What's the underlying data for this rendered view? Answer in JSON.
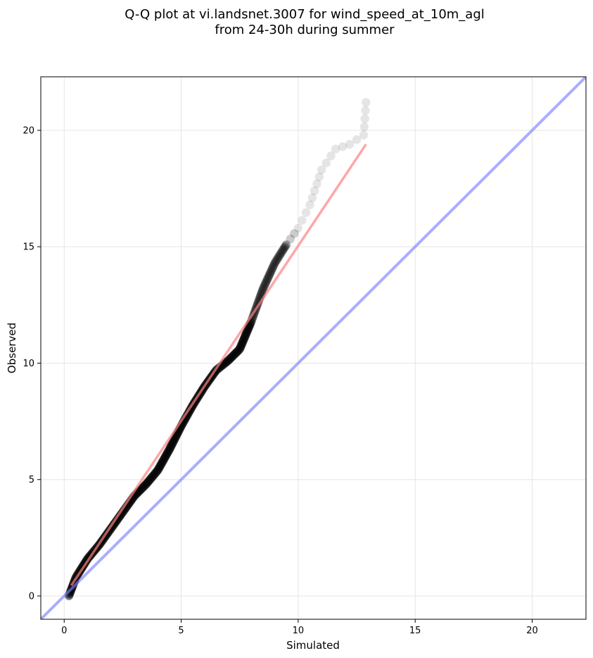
{
  "chart_data": {
    "type": "scatter",
    "title": "Q-Q plot at vi.landsnet.3007 for wind_speed_at_10m_agl",
    "subtitle": "from 24-30h during summer",
    "xlabel": "Simulated",
    "ylabel": "Observed",
    "xlim": [
      -1.0,
      22.3
    ],
    "ylim": [
      -1.0,
      22.3
    ],
    "xticks": [
      "0",
      "5",
      "10",
      "15",
      "20"
    ],
    "yticks": [
      "0",
      "5",
      "10",
      "15",
      "20"
    ],
    "grid": true,
    "colors": {
      "points": "#000000",
      "fit_line": "#ff8080",
      "identity_line": "#8080ff",
      "grid": "#e5e5e5"
    },
    "quantile_anchors": {
      "x": [
        0.2,
        0.5,
        1.0,
        1.5,
        2.0,
        2.5,
        3.0,
        3.5,
        4.0,
        4.5,
        5.0,
        5.5,
        6.0,
        6.5,
        7.0,
        7.5,
        8.0,
        8.5,
        9.0,
        9.5,
        10.0,
        10.5,
        11.0,
        11.6,
        12.2,
        12.8,
        12.9
      ],
      "y": [
        0.0,
        0.8,
        1.6,
        2.2,
        2.9,
        3.6,
        4.3,
        4.8,
        5.4,
        6.3,
        7.3,
        8.2,
        9.0,
        9.7,
        10.1,
        10.6,
        11.8,
        13.2,
        14.3,
        15.1,
        15.8,
        16.8,
        18.3,
        19.2,
        19.4,
        19.8,
        21.2
      ]
    },
    "fit_line": {
      "x": [
        0.3,
        12.9
      ],
      "y": [
        0.45,
        19.4
      ]
    },
    "identity_line": {
      "x": [
        -1.0,
        22.3
      ],
      "y": [
        -1.0,
        22.3
      ]
    }
  }
}
